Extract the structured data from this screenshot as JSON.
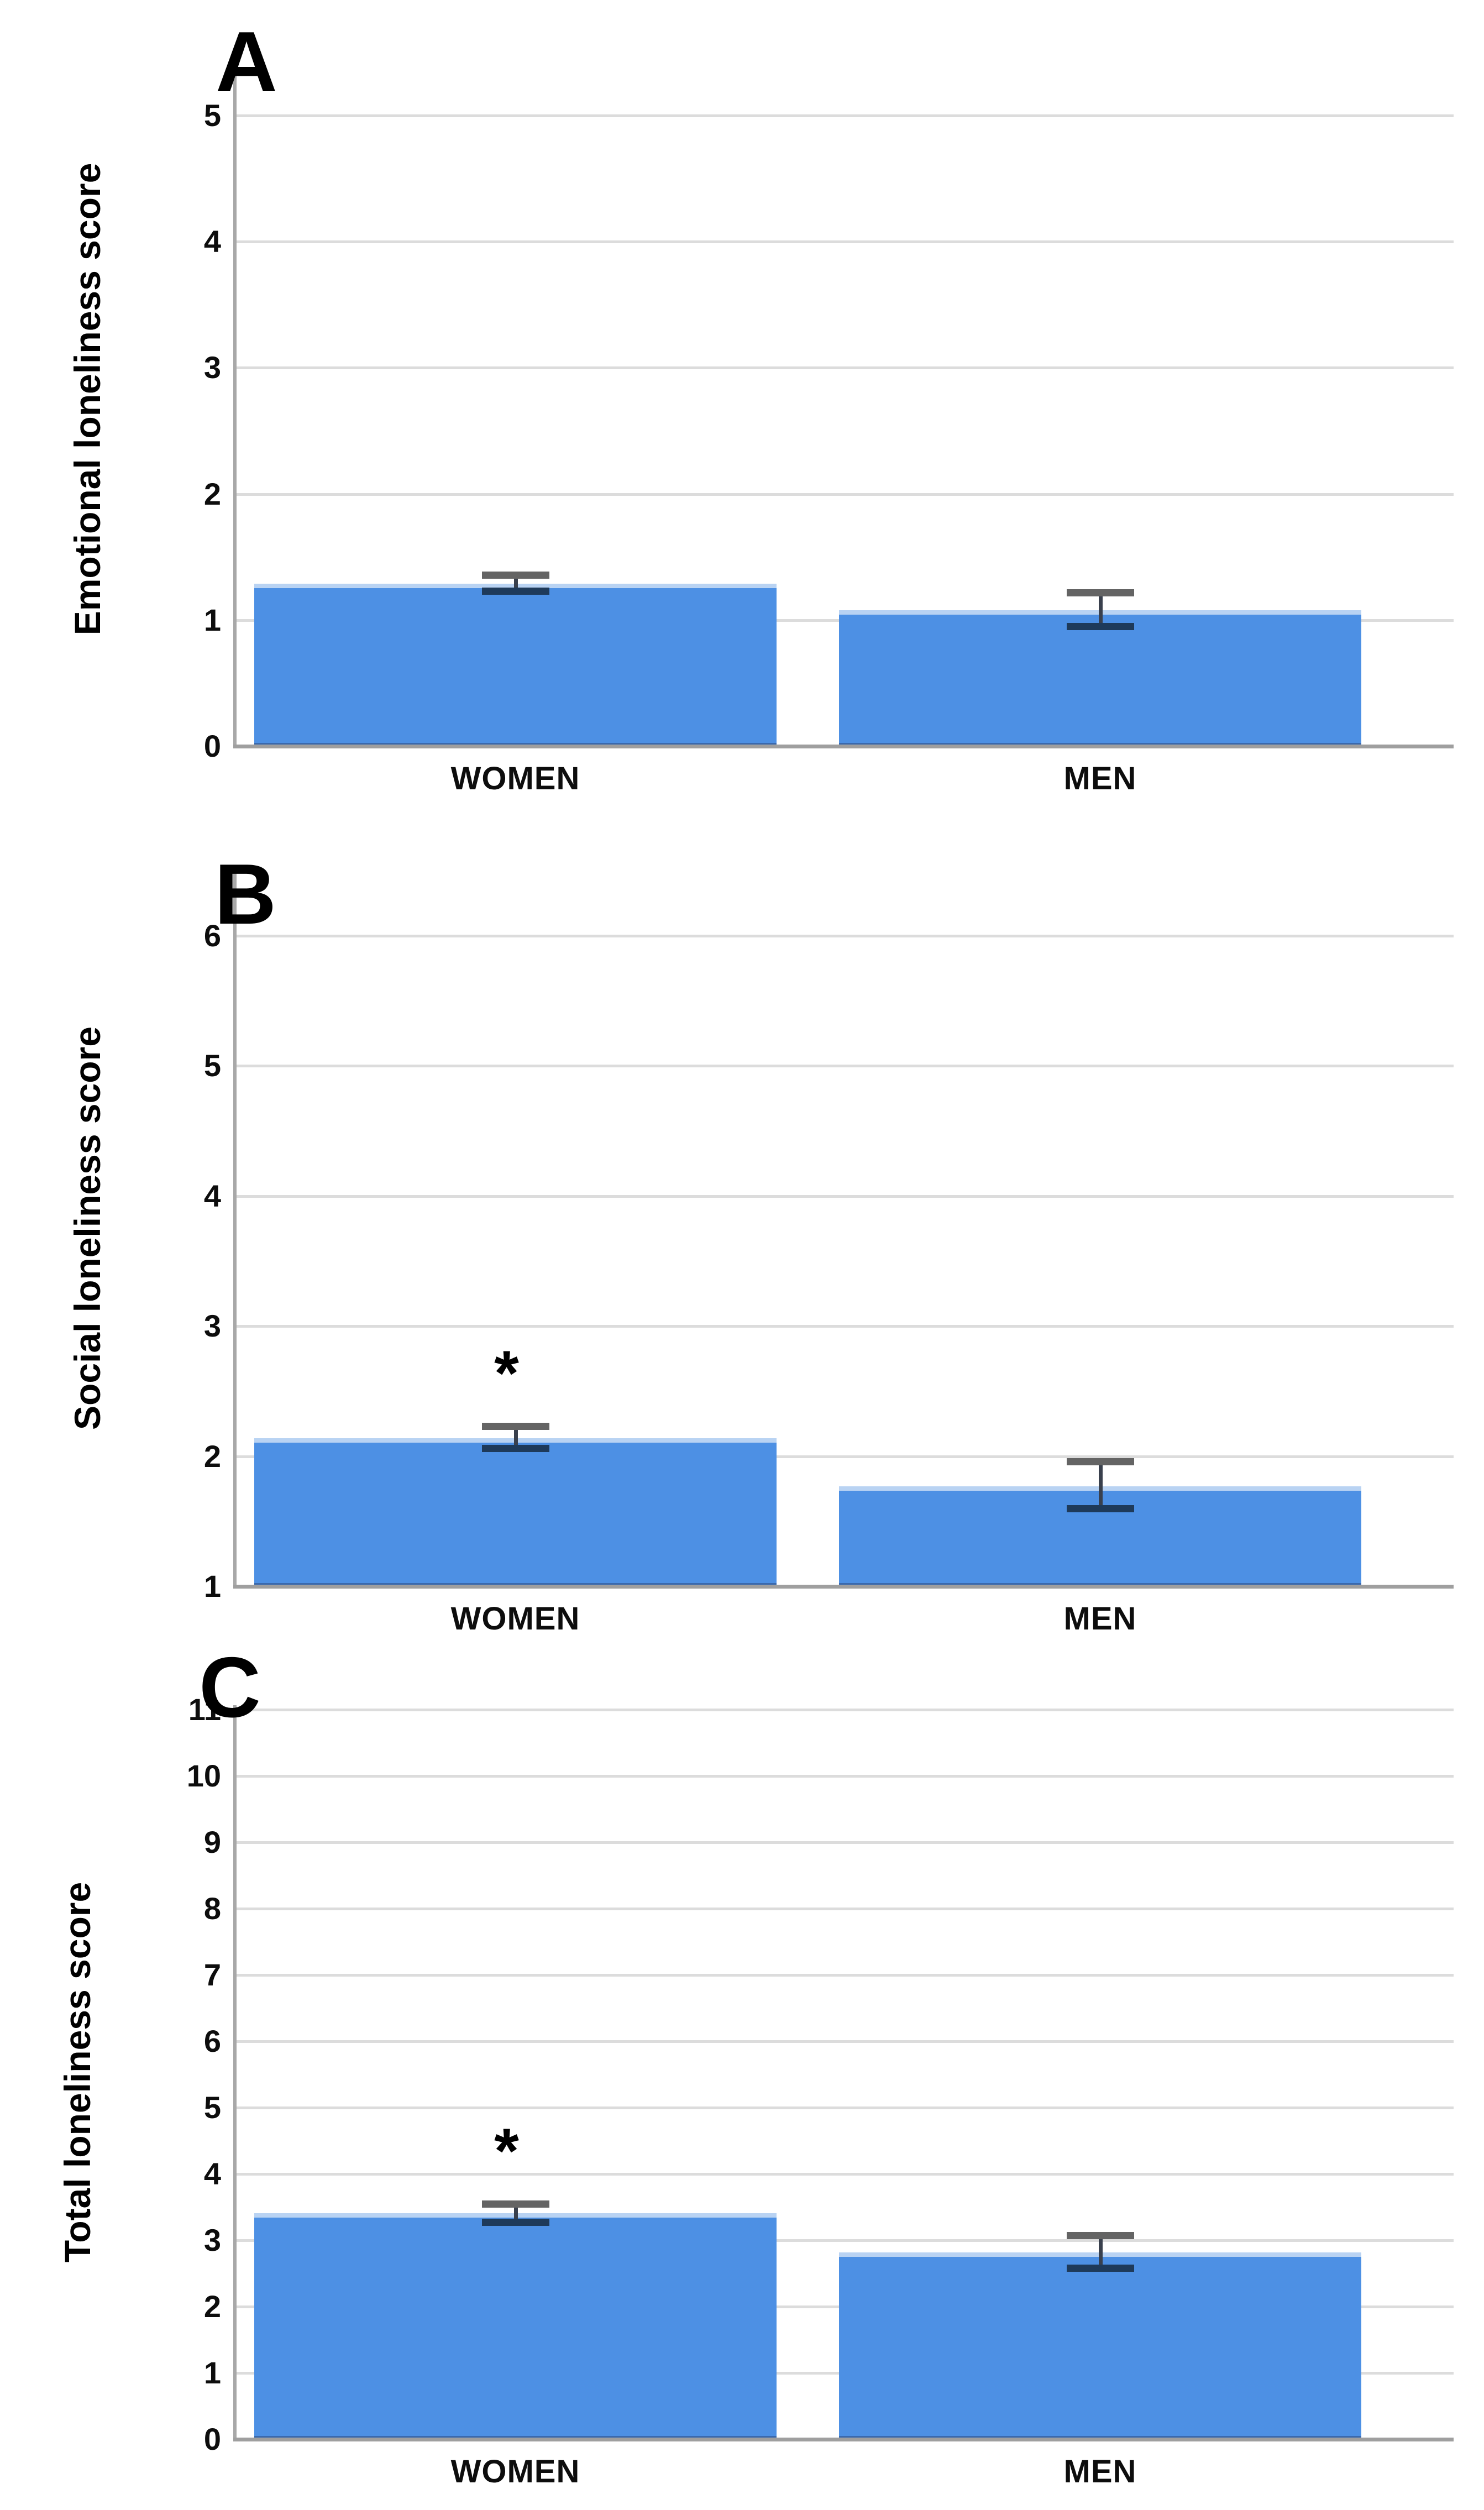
{
  "figure": {
    "background": "#ffffff",
    "bar_color": "#4d90e4",
    "bar_top_edge_color": "#b9d3f3",
    "bar_bottom_edge_color": "#3a69ad",
    "grid_color": "#dcdcdc",
    "axis_color": "#9f9f9f",
    "text_color": "#0d0d0d",
    "error_bar": {
      "line_color": "#39404d",
      "top_cap_color": "#646464",
      "bottom_cap_color": "#1e3a5a"
    },
    "significance_marker": "*"
  },
  "chart_data": [
    {
      "panel": "A",
      "type": "bar",
      "title": "",
      "xlabel": "",
      "ylabel": "Emotional loneliness score",
      "categories": [
        "WOMEN",
        "MEN"
      ],
      "values": [
        1.29,
        1.08
      ],
      "error_low": [
        1.23,
        0.95
      ],
      "error_high": [
        1.36,
        1.22
      ],
      "yticks": [
        0,
        1,
        2,
        3,
        4,
        5
      ],
      "ylim": [
        0,
        5.5
      ],
      "grid": true,
      "legend": "none",
      "significant": [
        false,
        false
      ]
    },
    {
      "panel": "B",
      "type": "bar",
      "title": "",
      "xlabel": "",
      "ylabel": "Social loneliness score",
      "categories": [
        "WOMEN",
        "MEN"
      ],
      "values": [
        2.14,
        1.77
      ],
      "error_low": [
        2.06,
        1.6
      ],
      "error_high": [
        2.23,
        1.96
      ],
      "yticks": [
        1,
        2,
        3,
        4,
        5,
        6
      ],
      "ylim": [
        1,
        6.5
      ],
      "grid": true,
      "legend": "none",
      "significant": [
        true,
        false
      ]
    },
    {
      "panel": "C",
      "type": "bar",
      "title": "",
      "xlabel": "",
      "ylabel": "Total loneliness score",
      "categories": [
        "WOMEN",
        "MEN"
      ],
      "values": [
        3.41,
        2.82
      ],
      "error_low": [
        3.28,
        2.58
      ],
      "error_high": [
        3.55,
        3.08
      ],
      "yticks": [
        0,
        1,
        2,
        3,
        4,
        5,
        6,
        7,
        8,
        9,
        10,
        11
      ],
      "ylim": [
        0,
        11.07
      ],
      "grid": true,
      "legend": "none",
      "significant": [
        true,
        false
      ]
    }
  ]
}
